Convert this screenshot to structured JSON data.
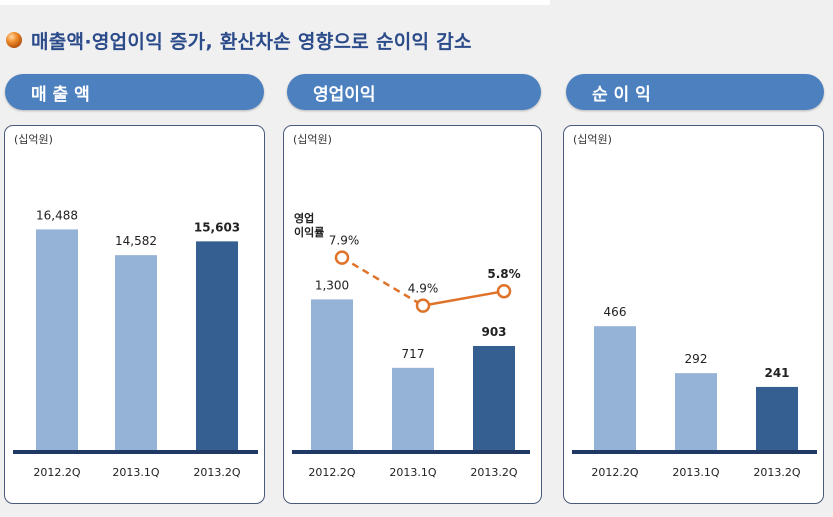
{
  "header": {
    "title": "매출액·영업이익 증가, 환산차손 영향으로 순이익 감소"
  },
  "colors": {
    "bar_light": "#95b3d7",
    "bar_dark": "#355e91",
    "axis": "#1f3864",
    "line": "#e0732a",
    "tab": "#4d80bf"
  },
  "sections": [
    {
      "tab_label": "매 출 액",
      "unit": "(십억원)"
    },
    {
      "tab_label": "영업이익",
      "unit": "(십억원)",
      "line_label": "영업\n이익률"
    },
    {
      "tab_label": "순 이 익",
      "unit": "(십억원)"
    }
  ],
  "chart_data": [
    {
      "type": "bar",
      "categories": [
        "2012.2Q",
        "2013.1Q",
        "2013.2Q"
      ],
      "values": [
        16488,
        14582,
        15603
      ],
      "value_labels": [
        "16,488",
        "14,582",
        "15,603"
      ],
      "ylabel": "(십억원)",
      "ylim": [
        0,
        20000
      ]
    },
    {
      "type": "bar",
      "categories": [
        "2012.2Q",
        "2013.1Q",
        "2013.2Q"
      ],
      "values": [
        1300,
        717,
        903
      ],
      "value_labels": [
        "1,300",
        "717",
        "903"
      ],
      "ylabel": "(십억원)",
      "ylim": [
        0,
        2300
      ],
      "line_series": {
        "name": "영업이익률",
        "values": [
          7.9,
          4.9,
          5.8
        ],
        "value_labels": [
          "7.9%",
          "4.9%",
          "5.8%"
        ],
        "ylim": [
          2.0,
          10.0
        ]
      }
    },
    {
      "type": "bar",
      "categories": [
        "2012.2Q",
        "2013.1Q",
        "2013.2Q"
      ],
      "values": [
        466,
        292,
        241
      ],
      "value_labels": [
        "466",
        "292",
        "241"
      ],
      "ylabel": "(십억원)",
      "ylim": [
        0,
        1000
      ]
    }
  ]
}
